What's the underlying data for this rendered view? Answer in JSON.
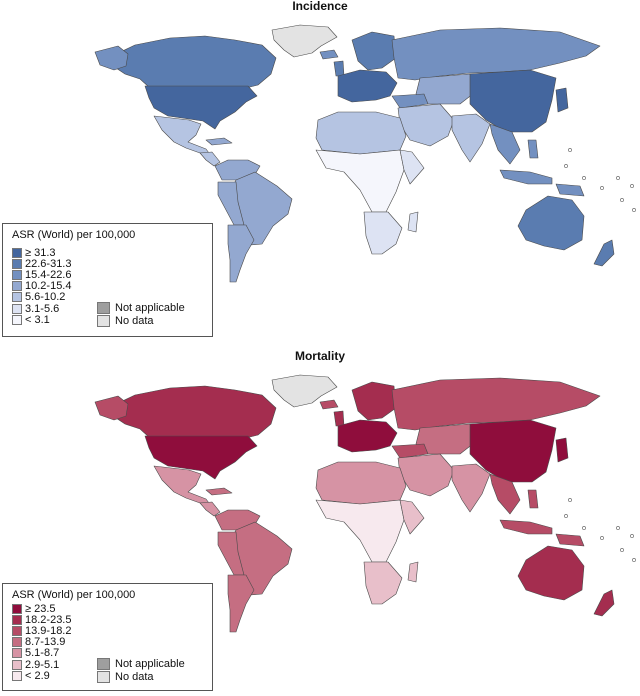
{
  "incidence": {
    "title": "Incidence",
    "legend_title": "ASR (World) per 100,000",
    "colors": {
      "c1": "#44669e",
      "c2": "#5a7cb0",
      "c3": "#7390c0",
      "c4": "#93a8d0",
      "c5": "#b5c4e2",
      "c6": "#dde3f3",
      "c7": "#f5f6fc"
    },
    "legend": [
      {
        "label": "≥ 31.3",
        "color": "#44669e"
      },
      {
        "label": "22.6-31.3",
        "color": "#5a7cb0"
      },
      {
        "label": "15.4-22.6",
        "color": "#7390c0"
      },
      {
        "label": "10.2-15.4",
        "color": "#93a8d0"
      },
      {
        "label": "5.6-10.2",
        "color": "#b5c4e2"
      },
      {
        "label": "3.1-5.6",
        "color": "#dde3f3"
      },
      {
        "label": "< 3.1",
        "color": "#f5f6fc"
      }
    ]
  },
  "mortality": {
    "title": "Mortality",
    "legend_title": "ASR (World) per 100,000",
    "colors": {
      "c1": "#8f0d3c",
      "c2": "#a42d4f",
      "c3": "#b64c66",
      "c4": "#c56e82",
      "c5": "#d693a4",
      "c6": "#e8bfca",
      "c7": "#f7e9ee"
    },
    "legend": [
      {
        "label": "≥ 23.5",
        "color": "#8f0d3c"
      },
      {
        "label": "18.2-23.5",
        "color": "#a42d4f"
      },
      {
        "label": "13.9-18.2",
        "color": "#b64c66"
      },
      {
        "label": "8.7-13.9",
        "color": "#c56e82"
      },
      {
        "label": "5.1-8.7",
        "color": "#d693a4"
      },
      {
        "label": "2.9-5.1",
        "color": "#e8bfca"
      },
      {
        "label": "< 2.9",
        "color": "#f7e9ee"
      }
    ]
  },
  "shared": {
    "not_applicable_label": "Not applicable",
    "not_applicable_color": "#9e9e9e",
    "no_data_label": "No data",
    "no_data_color": "#e3e3e3"
  }
}
